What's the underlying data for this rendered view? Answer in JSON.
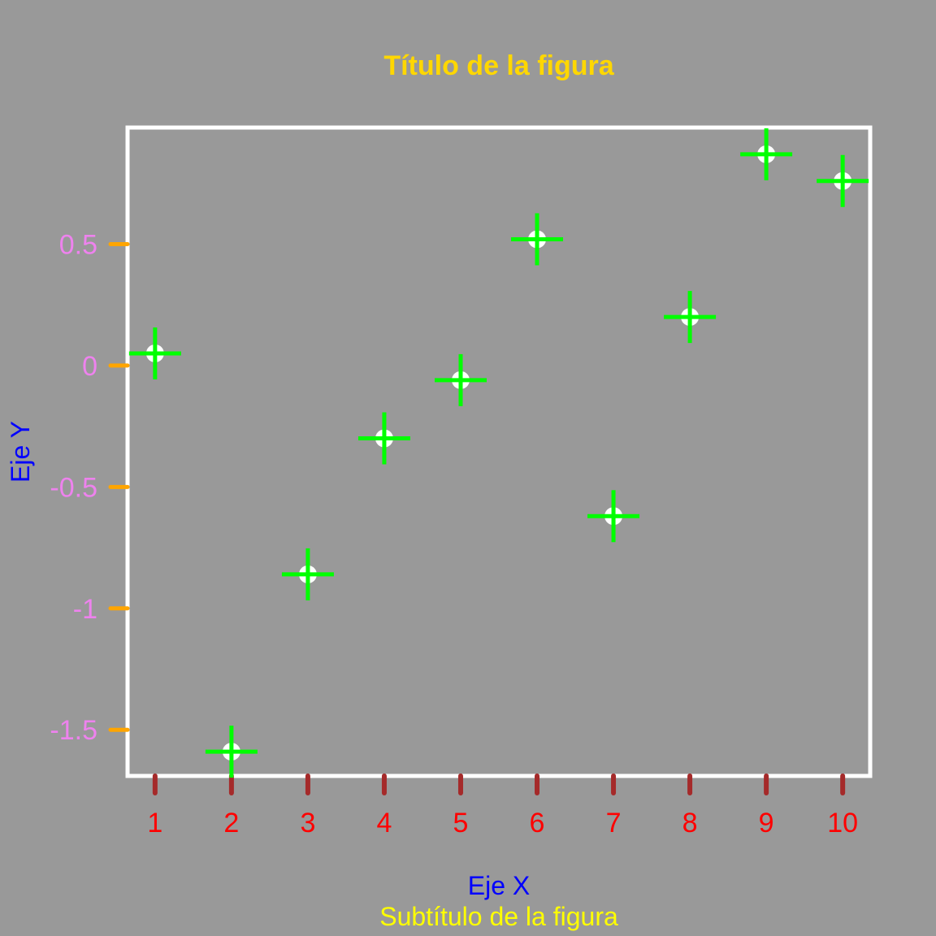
{
  "chart_data": {
    "type": "scatter",
    "title": "Título de la figura",
    "subtitle": "Subtítulo de la figura",
    "xlabel": "Eje X",
    "ylabel": "Eje Y",
    "x": [
      1,
      2,
      3,
      4,
      5,
      6,
      7,
      8,
      9,
      10
    ],
    "y": [
      0.05,
      -1.59,
      -0.86,
      -0.3,
      -0.06,
      0.52,
      -0.62,
      0.2,
      0.87,
      0.76
    ],
    "xlim": [
      0.64,
      10.36
    ],
    "ylim": [
      -1.69,
      0.98
    ],
    "x_ticks": [
      1,
      2,
      3,
      4,
      5,
      6,
      7,
      8,
      9,
      10
    ],
    "x_tick_labels": [
      "1",
      "2",
      "3",
      "4",
      "5",
      "6",
      "7",
      "8",
      "9",
      "10"
    ],
    "y_ticks": [
      0.5,
      0,
      -0.5,
      -1,
      -1.5
    ],
    "y_tick_labels": [
      "0.5",
      "0",
      "-0.5",
      "-1",
      "-1.5"
    ],
    "grid": false,
    "marker_style": "white circle with green cross"
  },
  "colors": {
    "background": "#999999",
    "plot_border": "#ffffff",
    "title": "#ffd700",
    "subtitle": "#ffff00",
    "axis_labels": "#0000ff",
    "x_tick_labels": "#ff0000",
    "y_tick_labels": "#ee82ee",
    "x_tick_marks": "#a52a2a",
    "y_tick_marks": "#ffa500",
    "marker_fill": "#ffffff",
    "marker_cross": "#00ff00"
  }
}
